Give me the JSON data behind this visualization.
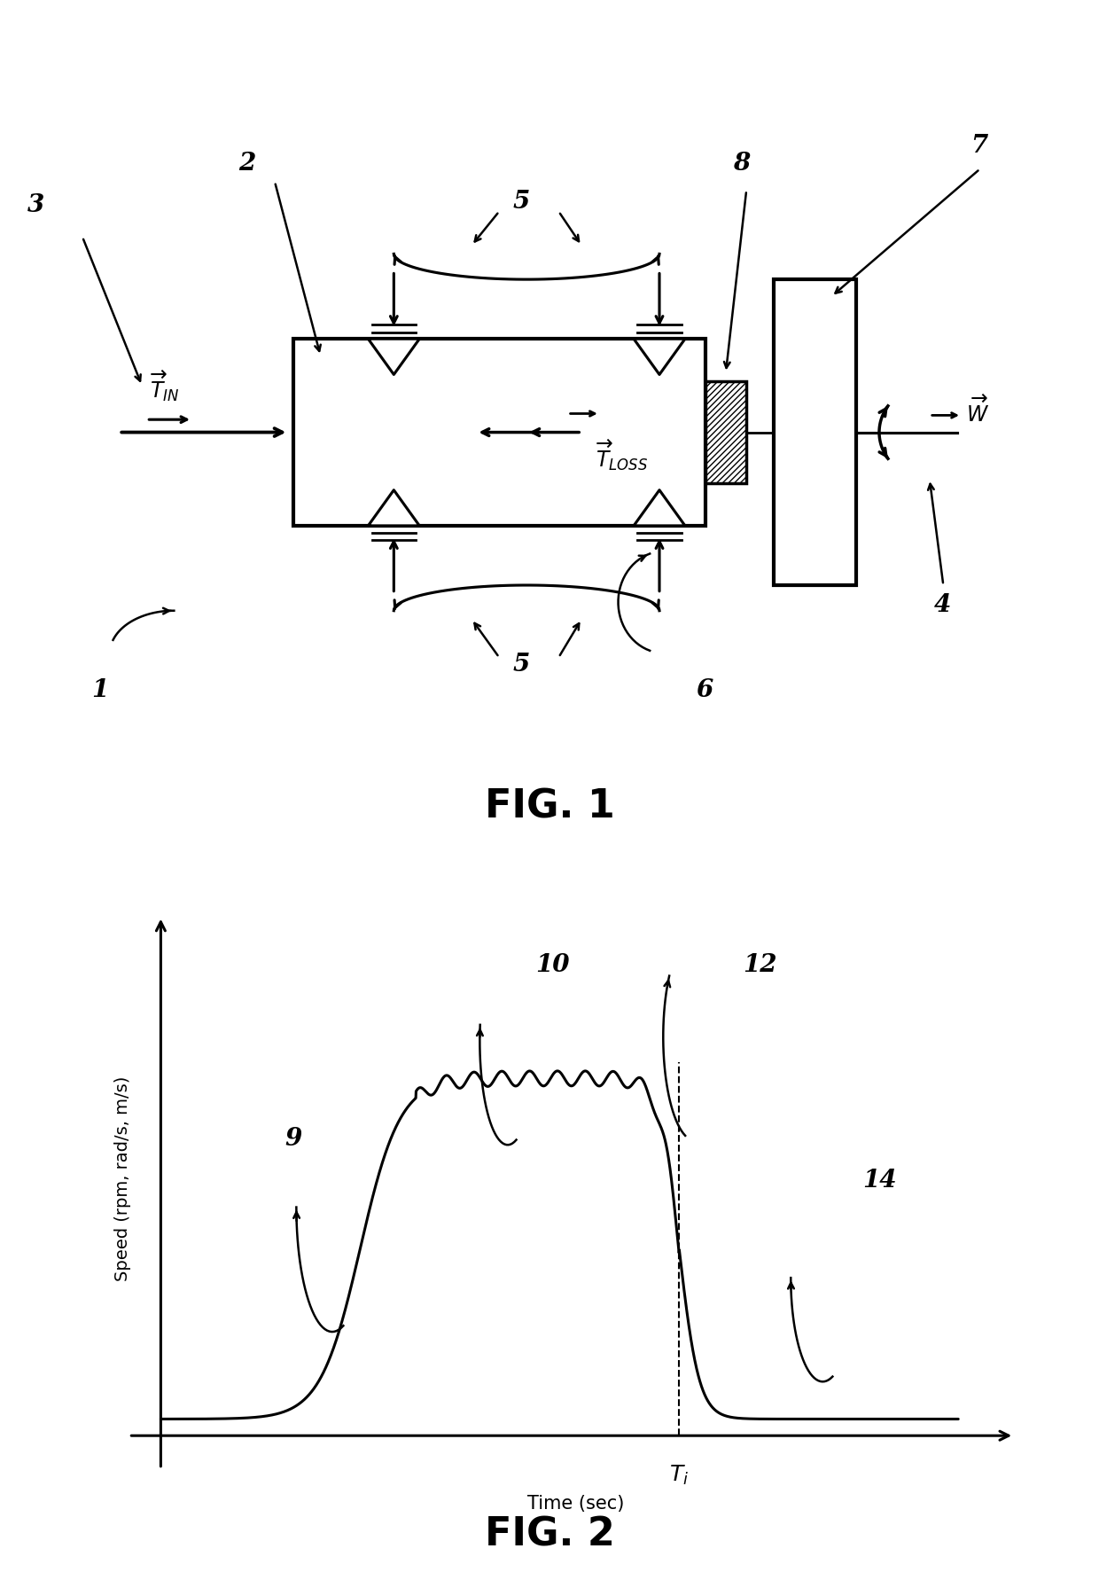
{
  "fig_width": 12.4,
  "fig_height": 17.74,
  "bg_color": "#ffffff",
  "line_color": "#000000",
  "fig1_label": "FIG. 1",
  "fig2_label": "FIG. 2",
  "fig1_label_fontsize": 32,
  "fig2_label_fontsize": 32,
  "annotation_fontsize": 20,
  "axis_label_fontsize": 15,
  "ti_label_fontsize": 18,
  "fig2_xlabel": "Time (sec)",
  "fig2_ylabel": "Speed (rpm, rad/s, m/s)"
}
